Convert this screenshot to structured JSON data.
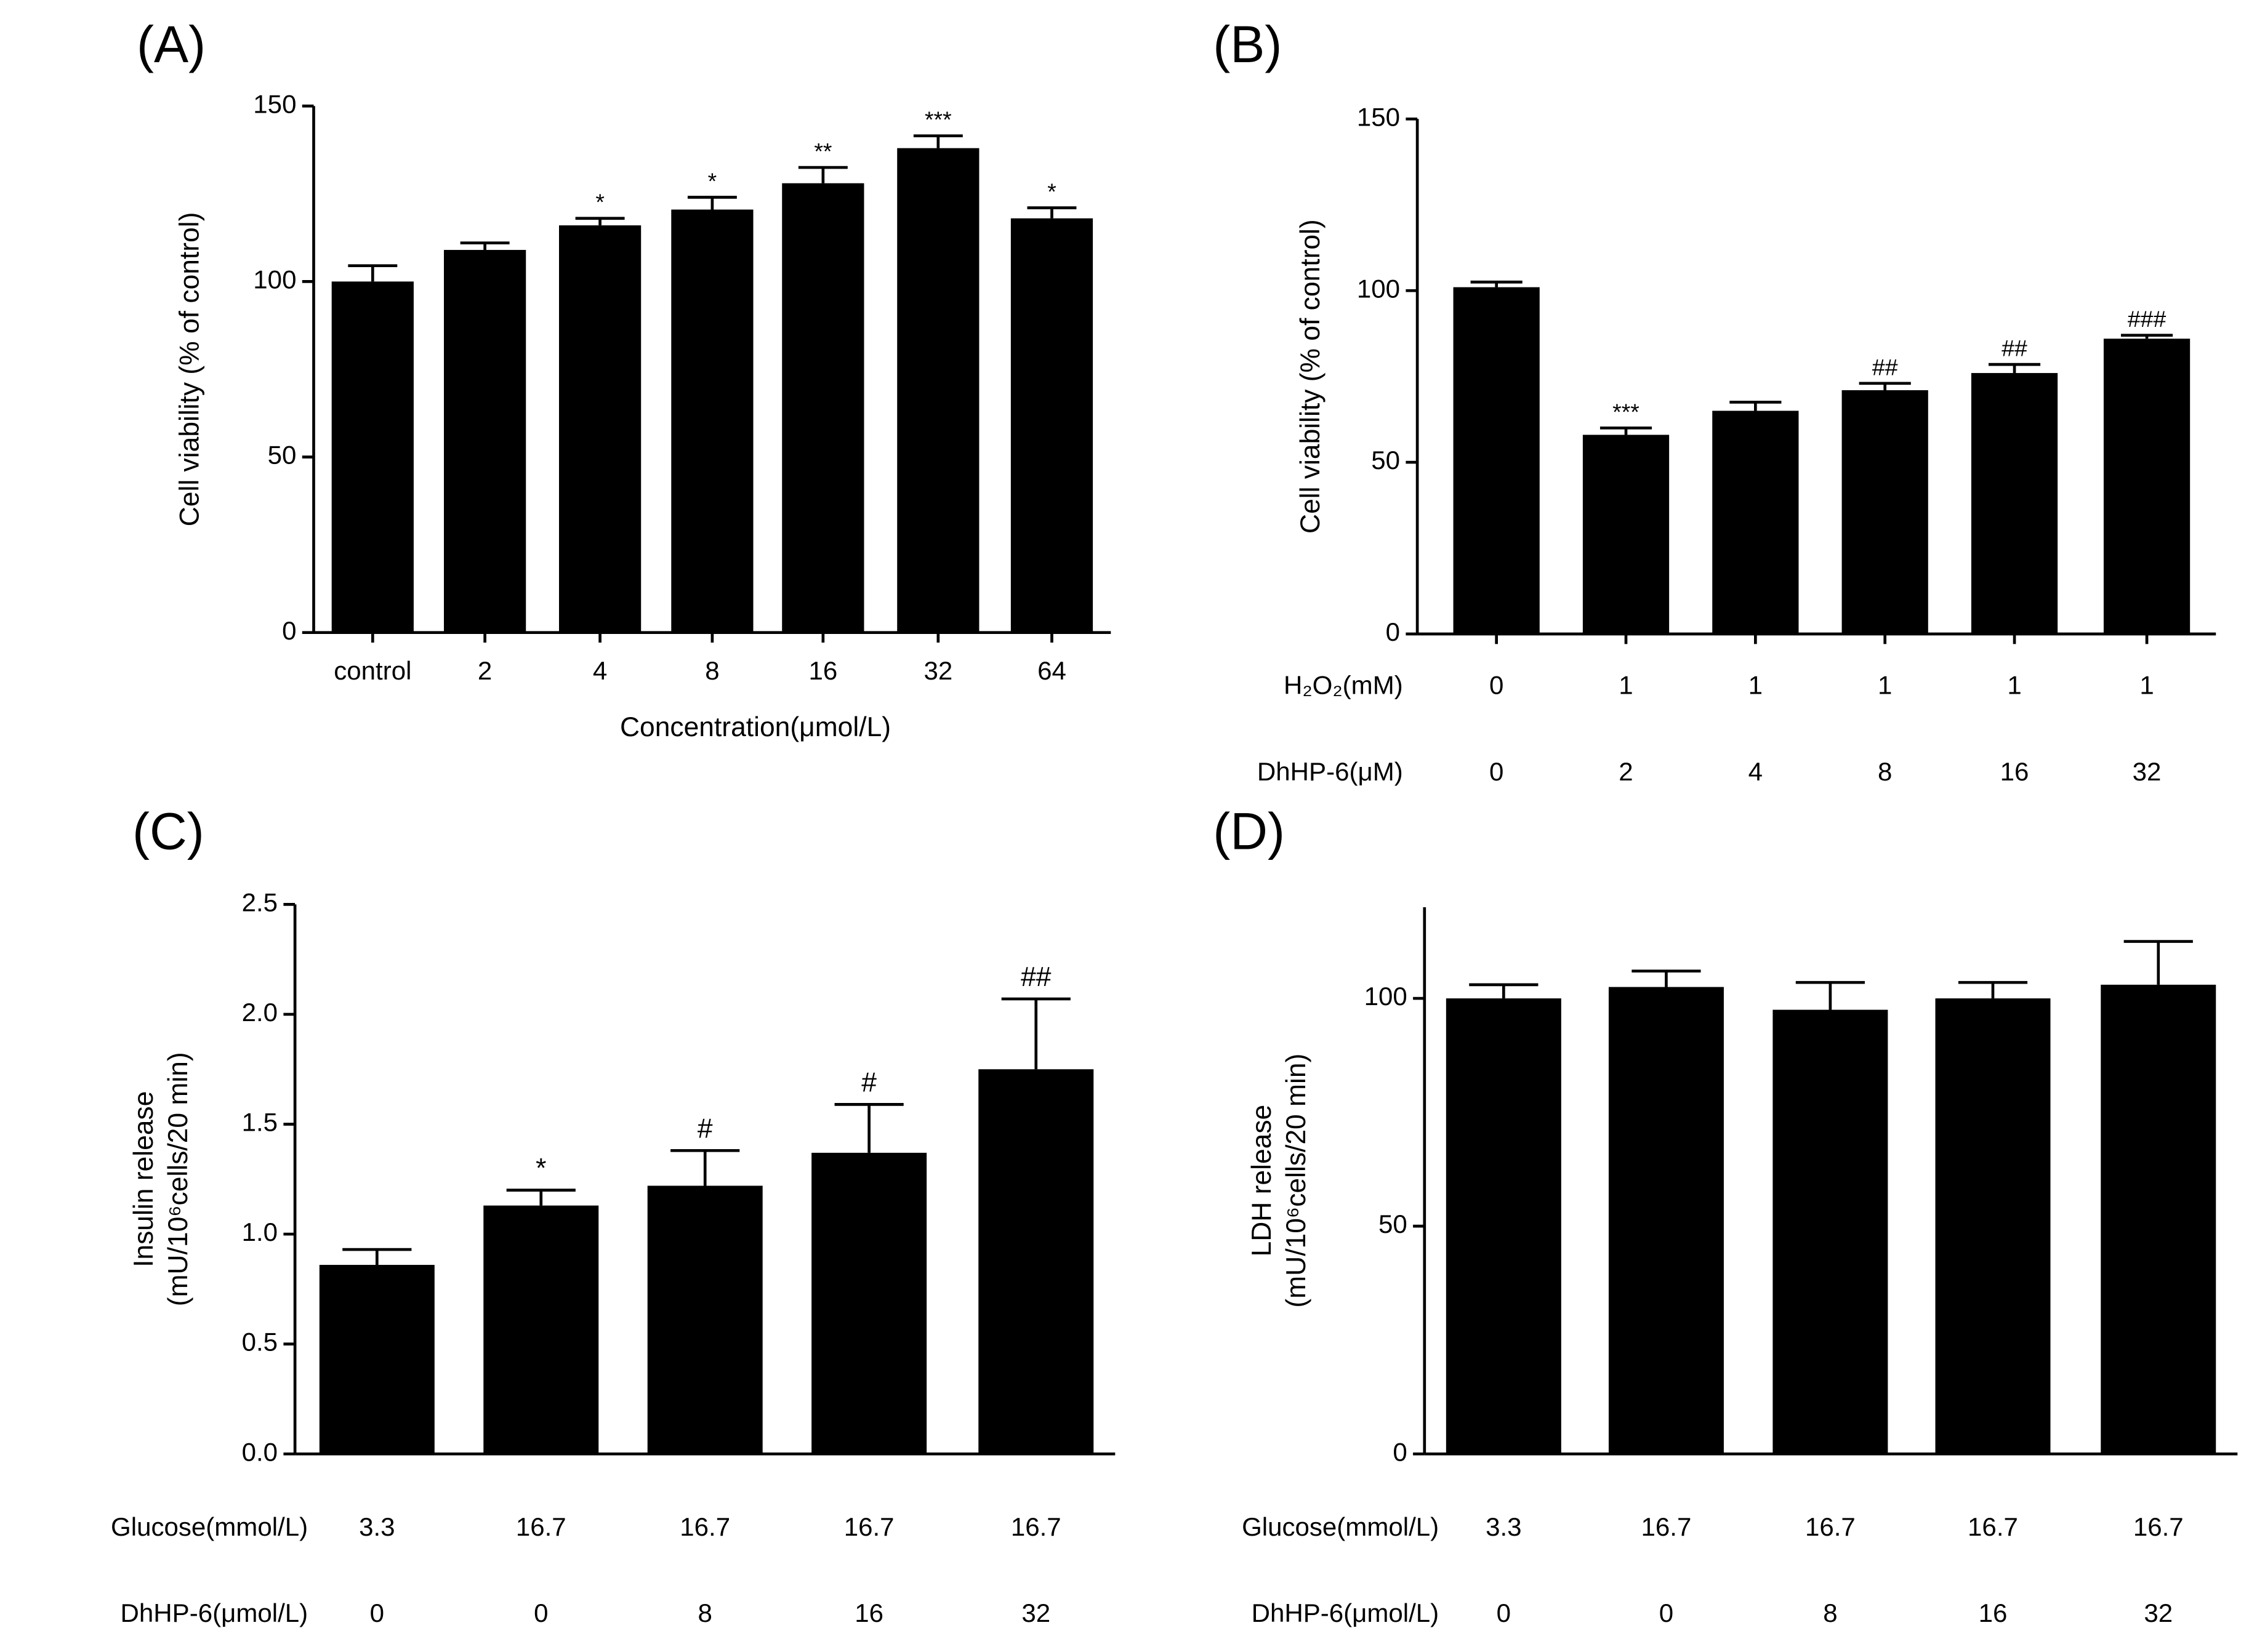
{
  "chart_data": [
    {
      "type": "bar",
      "title": "(A)",
      "ylabel": [
        "Cell viability (% of control)"
      ],
      "xlabel": "Concentration(μmol/L)",
      "categories": [
        "control",
        "2",
        "4",
        "8",
        "16",
        "32",
        "64"
      ],
      "values": [
        100,
        109,
        116,
        120.5,
        128,
        138,
        118
      ],
      "errors": [
        4.5,
        2,
        2,
        3.5,
        4.5,
        3.5,
        3
      ],
      "value_labels": [
        null,
        null,
        "*",
        "*",
        "**",
        "***",
        "*"
      ],
      "color": "#000000",
      "ylim": [
        0,
        150
      ],
      "yticks": [
        0,
        50,
        100,
        150
      ]
    },
    {
      "type": "bar",
      "title": "(B)",
      "ylabel": [
        "Cell viability (% of control)"
      ],
      "category_rows": [
        {
          "label": "H₂O₂(mM)",
          "values": [
            "0",
            "1",
            "1",
            "1",
            "1",
            "1"
          ]
        },
        {
          "label": "DhHP-6(μM)",
          "values": [
            "0",
            "2",
            "4",
            "8",
            "16",
            "32"
          ]
        }
      ],
      "values": [
        101,
        58,
        65,
        71,
        76,
        86
      ],
      "errors": [
        1.5,
        2,
        2.5,
        2,
        2.5,
        1
      ],
      "value_labels": [
        null,
        "***",
        null,
        "##",
        "##",
        "###"
      ],
      "color": "#000000",
      "ylim": [
        0,
        150
      ],
      "yticks": [
        0,
        50,
        100,
        150
      ]
    },
    {
      "type": "bar",
      "title": "(C)",
      "ylabel": [
        "Insulin release",
        "(mU/10⁶cells/20 min)"
      ],
      "category_rows": [
        {
          "label": "Glucose(mmol/L)",
          "values": [
            "3.3",
            "16.7",
            "16.7",
            "16.7",
            "16.7"
          ]
        },
        {
          "label": "DhHP-6(μmol/L)",
          "values": [
            "0",
            "0",
            "8",
            "16",
            "32"
          ]
        }
      ],
      "values": [
        0.86,
        1.13,
        1.22,
        1.37,
        1.75
      ],
      "errors": [
        0.07,
        0.07,
        0.16,
        0.22,
        0.32
      ],
      "value_labels": [
        null,
        "*",
        "#",
        "#",
        "##"
      ],
      "color": "#000000",
      "ylim": [
        0,
        2.5
      ],
      "yticks": [
        {
          "value": 0,
          "label": "0.0"
        },
        0.5,
        {
          "value": 1,
          "label": "1.0"
        },
        1.5,
        {
          "value": 2,
          "label": "2.0"
        },
        2.5
      ]
    },
    {
      "type": "bar",
      "title": "(D)",
      "ylabel": [
        "LDH release",
        "(mU/10⁶cells/20 min)"
      ],
      "category_rows": [
        {
          "label": "Glucose(mmol/L)",
          "values": [
            "3.3",
            "16.7",
            "16.7",
            "16.7",
            "16.7"
          ]
        },
        {
          "label": "DhHP-6(μmol/L)",
          "values": [
            "0",
            "0",
            "8",
            "16",
            "32"
          ]
        }
      ],
      "values": [
        100,
        102.5,
        97.5,
        100,
        103
      ],
      "errors": [
        3,
        3.5,
        6,
        3.5,
        9.5
      ],
      "color": "#000000",
      "ylim": [
        0,
        120
      ],
      "yticks": [
        0,
        50,
        100
      ]
    }
  ]
}
